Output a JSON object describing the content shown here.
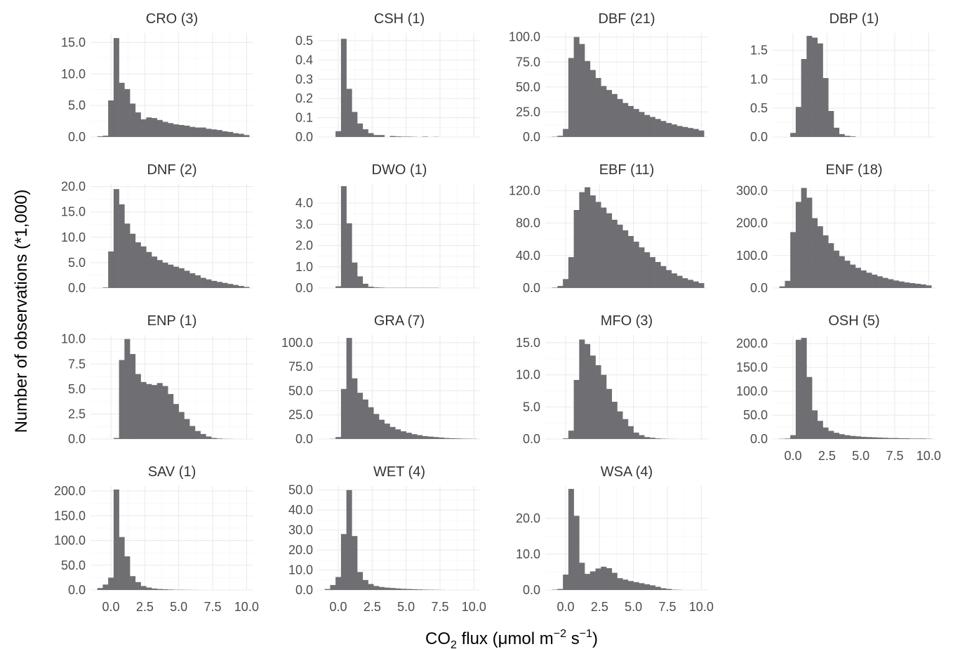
{
  "chart_data": {
    "type": "bar",
    "layout": "small-multiples histogram, 4 columns, shared x axis, free y axes",
    "grid": true,
    "bar_color": "#6f6f73",
    "xlabel_parts": {
      "main": "CO",
      "sub": "2",
      "rest": " flux (μmol m",
      "sup1": "−2",
      "mid": " s",
      "sup2": "−1",
      "end": ")"
    },
    "ylabel": "Number of observations (*1,000)",
    "xlim": [
      -1.5,
      10.5
    ],
    "x_breaks": [
      0.0,
      2.5,
      5.0,
      7.5,
      10.0
    ],
    "x_tick_labels": [
      "0.0",
      "2.5",
      "5.0",
      "7.5",
      "10.0"
    ],
    "bin_width": 0.4,
    "bin_left_edges": [
      -1.0,
      -0.6,
      -0.2,
      0.2,
      0.6,
      1.0,
      1.4,
      1.8,
      2.2,
      2.6,
      3.0,
      3.4,
      3.8,
      4.2,
      4.6,
      5.0,
      5.4,
      5.8,
      6.2,
      6.6,
      7.0,
      7.4,
      7.8,
      8.2,
      8.6,
      9.0,
      9.4,
      9.8
    ],
    "panels": [
      {
        "title": "CRO (3)",
        "ylim": [
          0,
          16.5
        ],
        "y_breaks": [
          0,
          5,
          10,
          15
        ],
        "y_tick_labels": [
          "0.0",
          "5.0",
          "10.0",
          "15.0"
        ],
        "values": [
          0.1,
          0.2,
          5.8,
          15.7,
          8.6,
          7.6,
          5.3,
          3.9,
          2.8,
          3.1,
          3.0,
          2.7,
          2.4,
          2.2,
          2.0,
          1.9,
          1.8,
          1.6,
          1.5,
          1.5,
          1.3,
          1.2,
          1.1,
          0.9,
          0.8,
          0.6,
          0.5,
          0.3
        ]
      },
      {
        "title": "CSH (1)",
        "ylim": [
          0,
          0.54
        ],
        "y_breaks": [
          0,
          0.1,
          0.2,
          0.3,
          0.4,
          0.5
        ],
        "y_tick_labels": [
          "0.0",
          "0.1",
          "0.2",
          "0.3",
          "0.4",
          "0.5"
        ],
        "values": [
          0,
          0.0,
          0.03,
          0.51,
          0.25,
          0.13,
          0.07,
          0.04,
          0.02,
          0.01,
          0.01,
          0.0,
          0.005,
          0.003,
          0.002,
          0.002,
          0.001,
          0.0,
          0.002,
          0.0,
          0.001,
          0.0,
          0.0,
          0,
          0,
          0,
          0,
          0
        ]
      },
      {
        "title": "DBF (21)",
        "ylim": [
          0,
          104
        ],
        "y_breaks": [
          0,
          25,
          50,
          75,
          100
        ],
        "y_tick_labels": [
          "0.0",
          "25.0",
          "50.0",
          "75.0",
          "100.0"
        ],
        "values": [
          0.3,
          1.2,
          8.0,
          79.0,
          100.0,
          93.0,
          76.0,
          67.0,
          59.0,
          51.0,
          47.0,
          43.0,
          38.0,
          34.0,
          31.0,
          28.0,
          25.0,
          22.0,
          20.0,
          18.0,
          16.0,
          14.0,
          12.5,
          11.0,
          10.0,
          9.0,
          8.0,
          6.5
        ]
      },
      {
        "title": "DBP (1)",
        "ylim": [
          0,
          1.8
        ],
        "y_breaks": [
          0,
          0.5,
          1.0,
          1.5
        ],
        "y_tick_labels": [
          "0.0",
          "0.5",
          "1.0",
          "1.5"
        ],
        "values": [
          0,
          0.0,
          0.07,
          0.52,
          1.35,
          1.75,
          1.72,
          1.62,
          1.02,
          0.45,
          0.16,
          0.05,
          0.02,
          0.01,
          0,
          0,
          0,
          0,
          0,
          0,
          0,
          0,
          0,
          0,
          0,
          0,
          0,
          0
        ]
      },
      {
        "title": "DNF (2)",
        "ylim": [
          0,
          20.5
        ],
        "y_breaks": [
          0,
          5,
          10,
          15,
          20
        ],
        "y_tick_labels": [
          "0.0",
          "5.0",
          "10.0",
          "15.0",
          "20.0"
        ],
        "values": [
          0,
          0.1,
          7.2,
          19.5,
          16.5,
          12.7,
          10.7,
          9.0,
          8.2,
          7.1,
          6.2,
          5.5,
          5.0,
          4.6,
          4.2,
          3.9,
          3.4,
          2.9,
          2.5,
          2.0,
          1.7,
          1.4,
          1.2,
          1.0,
          0.8,
          0.6,
          0.4,
          0.2
        ]
      },
      {
        "title": "DWO (1)",
        "ylim": [
          0,
          4.9
        ],
        "y_breaks": [
          0,
          1,
          2,
          3,
          4
        ],
        "y_tick_labels": [
          "0.0",
          "1.0",
          "2.0",
          "3.0",
          "4.0"
        ],
        "values": [
          0,
          0.0,
          0.08,
          4.8,
          3.05,
          1.2,
          0.55,
          0.2,
          0.06,
          0.03,
          0.02,
          0.01,
          0.01,
          0.01,
          0.01,
          0.01,
          0.01,
          0.01,
          0.01,
          0.01,
          0.01,
          0.0,
          0.0,
          0,
          0,
          0,
          0,
          0
        ]
      },
      {
        "title": "EBF (11)",
        "ylim": [
          0,
          128
        ],
        "y_breaks": [
          0,
          40,
          80,
          120
        ],
        "y_tick_labels": [
          "0.0",
          "40.0",
          "80.0",
          "120.0"
        ],
        "values": [
          0.5,
          2.5,
          11.0,
          38.0,
          96.0,
          118.0,
          124.0,
          114.0,
          106.0,
          99.0,
          92.0,
          84.0,
          78.0,
          71.0,
          64.0,
          57.0,
          50.0,
          44.0,
          38.0,
          32.0,
          27.0,
          22.0,
          18.0,
          15.0,
          12.0,
          10.0,
          8.0,
          6.0
        ]
      },
      {
        "title": "ENF (18)",
        "ylim": [
          0,
          320
        ],
        "y_breaks": [
          0,
          100,
          200,
          300
        ],
        "y_tick_labels": [
          "0.0",
          "100.0",
          "200.0",
          "300.0"
        ],
        "values": [
          5.0,
          22.0,
          172.0,
          265.0,
          308.0,
          278.0,
          215.0,
          190.0,
          162.0,
          138.0,
          115.0,
          98.0,
          84.0,
          72.0,
          62.0,
          54.0,
          47.0,
          41.0,
          36.0,
          31.0,
          27.0,
          23.0,
          20.0,
          17.0,
          15.0,
          13.0,
          11.0,
          8.0
        ]
      },
      {
        "title": "ENP (1)",
        "ylim": [
          0,
          10.4
        ],
        "y_breaks": [
          0,
          2.5,
          5,
          7.5,
          10
        ],
        "y_tick_labels": [
          "0.0",
          "2.5",
          "5.0",
          "7.5",
          "10.0"
        ],
        "values": [
          0,
          0,
          0.0,
          0.1,
          7.9,
          10.0,
          8.5,
          6.5,
          5.7,
          5.5,
          5.4,
          5.6,
          5.3,
          4.5,
          3.5,
          2.7,
          2.0,
          1.3,
          0.8,
          0.5,
          0.25,
          0.1,
          0.05,
          0.02,
          0.01,
          0.0,
          0.0,
          0.0
        ]
      },
      {
        "title": "GRA (7)",
        "ylim": [
          0,
          108
        ],
        "y_breaks": [
          0,
          25,
          50,
          75,
          100
        ],
        "y_tick_labels": [
          "0.0",
          "25.0",
          "50.0",
          "75.0",
          "100.0"
        ],
        "values": [
          0,
          0.2,
          2.0,
          52.0,
          105.0,
          63.0,
          48.0,
          41.0,
          33.0,
          26.0,
          20.0,
          16.0,
          12.5,
          10.0,
          8.0,
          6.5,
          5.0,
          4.0,
          3.0,
          2.5,
          2.0,
          1.5,
          1.0,
          0.8,
          0.6,
          0.4,
          0.3,
          0.2
        ]
      },
      {
        "title": "MFO (3)",
        "ylim": [
          0,
          16.2
        ],
        "y_breaks": [
          0,
          5,
          10,
          15
        ],
        "y_tick_labels": [
          "0.0",
          "5.0",
          "10.0",
          "15.0"
        ],
        "values": [
          0,
          0.0,
          0.1,
          1.3,
          9.2,
          15.5,
          14.8,
          13.0,
          11.5,
          10.0,
          7.8,
          5.8,
          4.3,
          3.1,
          2.0,
          1.0,
          0.6,
          0.3,
          0.2,
          0.1,
          0.05,
          0.02,
          0.01,
          0.0,
          0,
          0,
          0,
          0
        ]
      },
      {
        "title": "OSH (5)",
        "ylim": [
          0,
          218
        ],
        "y_breaks": [
          0,
          50,
          100,
          150,
          200
        ],
        "y_tick_labels": [
          "0.0",
          "50.0",
          "100.0",
          "150.0",
          "200.0"
        ],
        "values": [
          0.5,
          1.0,
          8.0,
          208.0,
          212.0,
          130.0,
          60.0,
          38.0,
          24.0,
          17.0,
          13.0,
          10.0,
          8.0,
          6.5,
          5.5,
          4.5,
          4.0,
          3.5,
          3.0,
          2.5,
          2.0,
          2.0,
          1.5,
          1.5,
          1.0,
          1.0,
          1.0,
          0.5
        ]
      },
      {
        "title": "SAV (1)",
        "ylim": [
          0,
          210
        ],
        "y_breaks": [
          0,
          50,
          100,
          150,
          200
        ],
        "y_tick_labels": [
          "0.0",
          "50.0",
          "100.0",
          "150.0",
          "200.0"
        ],
        "values": [
          4.0,
          11.0,
          25.0,
          203.0,
          107.0,
          68.0,
          28.0,
          16.0,
          8.0,
          5.0,
          3.0,
          2.0,
          1.5,
          1.0,
          0.5,
          0.5,
          0.3,
          0.2,
          0.1,
          0.0,
          0,
          0,
          0,
          0,
          0,
          0,
          0,
          0
        ]
      },
      {
        "title": "WET (4)",
        "ylim": [
          0,
          52
        ],
        "y_breaks": [
          0,
          10,
          20,
          30,
          40,
          50
        ],
        "y_tick_labels": [
          "0.0",
          "10.0",
          "20.0",
          "30.0",
          "40.0",
          "50.0"
        ],
        "values": [
          0.5,
          2.5,
          6.5,
          28.0,
          50.0,
          27.0,
          9.0,
          5.0,
          3.0,
          2.0,
          1.5,
          1.2,
          1.0,
          0.8,
          0.6,
          0.5,
          0.4,
          0.3,
          0.2,
          0.15,
          0.1,
          0.05,
          0.0,
          0.0,
          0,
          0,
          0,
          0
        ]
      },
      {
        "title": "WSA (4)",
        "ylim": [
          0,
          29
        ],
        "y_breaks": [
          0,
          10,
          20
        ],
        "y_tick_labels": [
          "0.0",
          "10.0",
          "20.0"
        ],
        "values": [
          0.1,
          0.3,
          4.3,
          28.2,
          20.7,
          7.6,
          4.5,
          5.2,
          6.0,
          6.5,
          6.1,
          4.8,
          3.3,
          2.9,
          2.5,
          2.2,
          1.9,
          1.6,
          1.3,
          0.9,
          0.5,
          0.3,
          0.1,
          0.05,
          0.0,
          0,
          0,
          0
        ]
      }
    ]
  }
}
